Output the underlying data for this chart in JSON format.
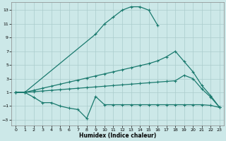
{
  "xlabel": "Humidex (Indice chaleur)",
  "bg_color": "#cce8e8",
  "grid_color": "#aacccc",
  "line_color": "#1a7a6e",
  "xlim": [
    -0.5,
    23.5
  ],
  "ylim": [
    -3.8,
    14.2
  ],
  "xticks": [
    0,
    1,
    2,
    3,
    4,
    5,
    6,
    7,
    8,
    9,
    10,
    11,
    12,
    13,
    14,
    15,
    16,
    17,
    18,
    19,
    20,
    21,
    22,
    23
  ],
  "yticks": [
    -3,
    -1,
    1,
    3,
    5,
    7,
    9,
    11,
    13
  ],
  "line1_x": [
    0,
    1,
    9,
    10,
    11,
    12,
    13,
    14,
    15,
    16
  ],
  "line1_y": [
    1.0,
    1.0,
    9.5,
    11.0,
    12.0,
    13.0,
    13.5,
    13.5,
    13.0,
    10.8
  ],
  "line2_x": [
    0,
    1,
    2,
    3,
    4,
    5,
    6,
    7,
    8,
    9,
    10,
    11,
    12,
    13,
    14,
    15,
    16,
    17,
    18,
    19,
    20,
    21,
    22,
    23
  ],
  "line2_y": [
    1.0,
    1.0,
    1.3,
    1.6,
    1.9,
    2.2,
    2.5,
    2.8,
    3.1,
    3.4,
    3.7,
    4.0,
    4.3,
    4.6,
    4.9,
    5.2,
    5.6,
    6.2,
    7.0,
    5.5,
    4.0,
    2.0,
    0.5,
    -1.2
  ],
  "line3_x": [
    0,
    1,
    2,
    3,
    4,
    5,
    6,
    7,
    8,
    9,
    10,
    11,
    12,
    13,
    14,
    15,
    16,
    17,
    18,
    19,
    20,
    21,
    22,
    23
  ],
  "line3_y": [
    1.0,
    1.0,
    1.1,
    1.2,
    1.3,
    1.4,
    1.5,
    1.6,
    1.7,
    1.8,
    1.9,
    2.0,
    2.1,
    2.2,
    2.3,
    2.4,
    2.5,
    2.6,
    2.7,
    3.5,
    3.0,
    1.5,
    0.3,
    -1.2
  ],
  "line4_x": [
    0,
    1,
    2,
    3,
    4,
    5,
    6,
    7,
    8,
    9,
    10,
    11,
    12,
    13,
    14,
    15,
    16,
    17,
    18,
    19,
    20,
    21,
    22,
    23
  ],
  "line4_y": [
    1.0,
    1.0,
    0.3,
    -0.5,
    -0.5,
    -1.0,
    -1.3,
    -1.5,
    -2.8,
    0.4,
    -0.8,
    -0.8,
    -0.8,
    -0.8,
    -0.8,
    -0.8,
    -0.8,
    -0.8,
    -0.8,
    -0.8,
    -0.8,
    -0.8,
    -0.9,
    -1.2
  ]
}
